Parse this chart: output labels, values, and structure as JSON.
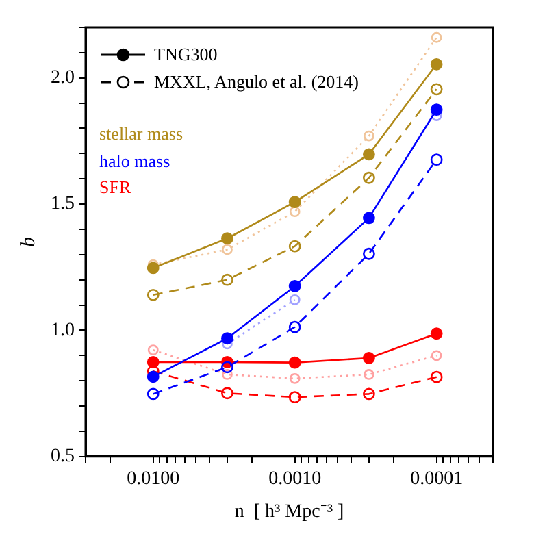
{
  "chart_data": {
    "type": "line",
    "xlabel": "n  [ h³ Mpc⁻³ ]",
    "ylabel": "b",
    "log": "x",
    "xlim": [
      0.03,
      4e-05
    ],
    "ylim": [
      0.5,
      2.2
    ],
    "xticks": [
      {
        "value": 0.03,
        "label": null
      },
      {
        "value": 0.02,
        "label": null
      },
      {
        "value": 0.01,
        "label": "0.0100"
      },
      {
        "value": 0.009,
        "label": null
      },
      {
        "value": 0.008,
        "label": null
      },
      {
        "value": 0.007,
        "label": null
      },
      {
        "value": 0.006,
        "label": null
      },
      {
        "value": 0.005,
        "label": null
      },
      {
        "value": 0.004,
        "label": null
      },
      {
        "value": 0.003,
        "label": null
      },
      {
        "value": 0.002,
        "label": null
      },
      {
        "value": 0.001,
        "label": "0.0010"
      },
      {
        "value": 0.0009,
        "label": null
      },
      {
        "value": 0.0008,
        "label": null
      },
      {
        "value": 0.0007,
        "label": null
      },
      {
        "value": 0.0006,
        "label": null
      },
      {
        "value": 0.0005,
        "label": null
      },
      {
        "value": 0.0004,
        "label": null
      },
      {
        "value": 0.0003,
        "label": null
      },
      {
        "value": 0.0002,
        "label": null
      },
      {
        "value": 0.0001,
        "label": "0.0001"
      },
      {
        "value": 9e-05,
        "label": null
      },
      {
        "value": 8e-05,
        "label": null
      },
      {
        "value": 7e-05,
        "label": null
      },
      {
        "value": 6e-05,
        "label": null
      },
      {
        "value": 5e-05,
        "label": null
      },
      {
        "value": 4e-05,
        "label": null
      }
    ],
    "yticks": [
      {
        "value": 0.5,
        "label": "0.5"
      },
      {
        "value": 0.6,
        "label": null
      },
      {
        "value": 0.7,
        "label": null
      },
      {
        "value": 0.8,
        "label": null
      },
      {
        "value": 0.9,
        "label": null
      },
      {
        "value": 1,
        "label": "1.0"
      },
      {
        "value": 1.1,
        "label": null
      },
      {
        "value": 1.2,
        "label": null
      },
      {
        "value": 1.3,
        "label": null
      },
      {
        "value": 1.4,
        "label": null
      },
      {
        "value": 1.5,
        "label": "1.5"
      },
      {
        "value": 1.6,
        "label": null
      },
      {
        "value": 1.7,
        "label": null
      },
      {
        "value": 1.8,
        "label": null
      },
      {
        "value": 1.9,
        "label": null
      },
      {
        "value": 2,
        "label": "2.0"
      },
      {
        "value": 2.1,
        "label": null
      },
      {
        "value": 2.2,
        "label": null
      }
    ],
    "x": [
      0.01,
      0.003,
      0.001,
      0.0003,
      0.0001
    ],
    "grid": false,
    "legend": "top left",
    "annotations": [
      "TNG300",
      "MXXL, Angulo et al. (2014)"
    ],
    "series": [
      {
        "name": "stellar mass",
        "color": "#b08a1a",
        "line_style": "solid",
        "marker": "circle",
        "values": [
          1.247,
          1.364,
          1.508,
          1.697,
          2.054
        ]
      },
      {
        "color": "#b08a1a",
        "line_style": "dashed",
        "marker": "circle",
        "values": [
          1.14,
          1.2,
          1.333,
          1.604,
          1.955
        ]
      },
      {
        "color": "#f0c49a",
        "line_style": "dotted",
        "marker": "circle",
        "values": [
          1.26,
          1.32,
          1.47,
          1.77,
          2.16
        ]
      },
      {
        "name": "halo mass",
        "color": "#0000ff",
        "line_style": "solid",
        "marker": "circle",
        "values": [
          0.816,
          0.968,
          1.175,
          1.445,
          1.874
        ]
      },
      {
        "color": "#0000ff",
        "line_style": "dashed",
        "marker": "circle",
        "values": [
          0.748,
          0.854,
          1.013,
          1.303,
          1.676
        ]
      },
      {
        "color": "#a0a0ff",
        "line_style": "dotted",
        "marker": "circle",
        "values": [
          null,
          0.946,
          1.121,
          null,
          1.85
        ]
      },
      {
        "name": "SFR",
        "color": "#ff0000",
        "line_style": "solid",
        "marker": "circle",
        "values": [
          0.874,
          0.874,
          0.872,
          0.89,
          0.987
        ]
      },
      {
        "color": "#ff0000",
        "line_style": "dashed",
        "marker": "circle",
        "values": [
          0.838,
          0.751,
          0.735,
          0.748,
          0.815
        ]
      },
      {
        "color": "#ffa0a0",
        "line_style": "dotted",
        "marker": "circle",
        "values": [
          0.922,
          0.825,
          0.809,
          0.825,
          0.9
        ]
      }
    ]
  }
}
